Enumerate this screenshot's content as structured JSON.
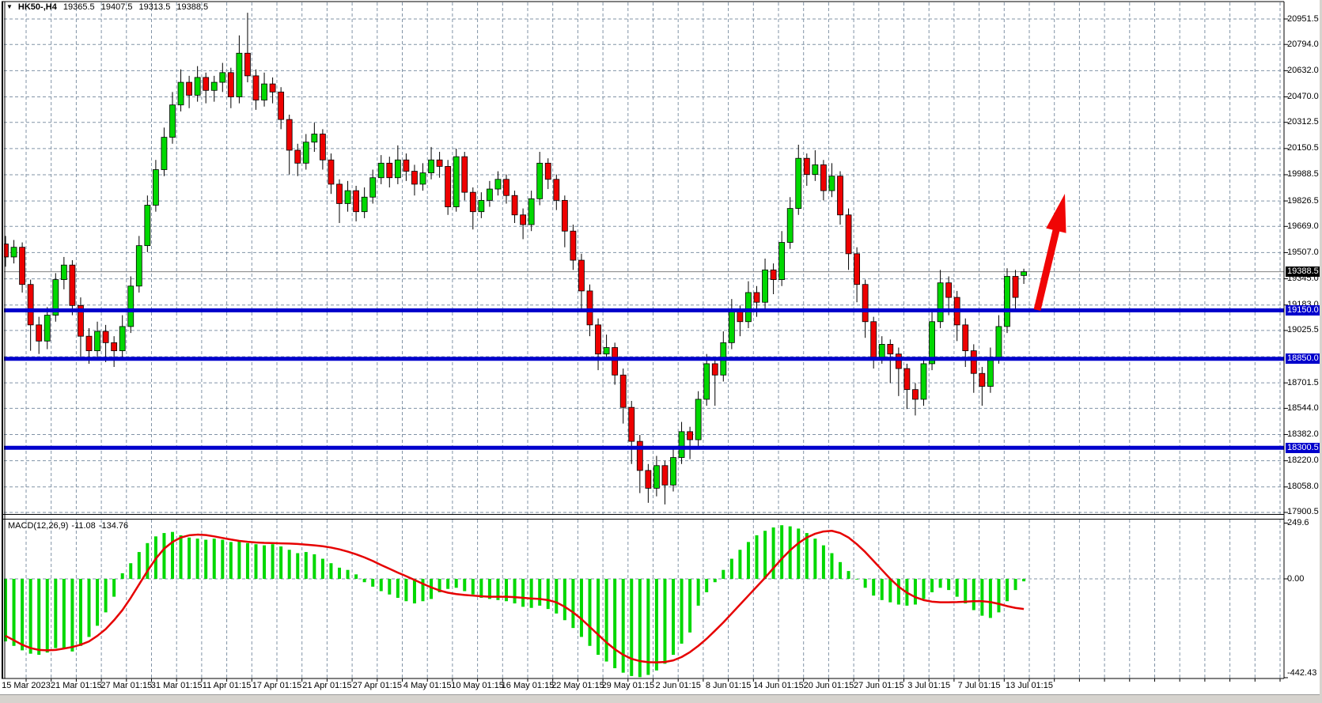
{
  "header": {
    "symbol": "HK50-,H4",
    "open": "19365.5",
    "high": "19407.5",
    "low": "19313.5",
    "close": "19388.5"
  },
  "macd_panel": {
    "name": "MACD(12,26,9)",
    "macd_value": "-11.08",
    "signal_value": "-134.76",
    "axis_labels": [
      "249.6",
      "0.00",
      "-442.43"
    ],
    "axis_values": [
      249.6,
      0,
      -442.43
    ]
  },
  "price_axis": {
    "tick_labels": [
      "20951.5",
      "20794.0",
      "20632.0",
      "20470.0",
      "20312.5",
      "20150.5",
      "19988.5",
      "19826.5",
      "19669.0",
      "19507.0",
      "19345.0",
      "19183.0",
      "19025.5",
      "18701.5",
      "18544.0",
      "18382.0",
      "18220.0",
      "18058.0",
      "17900.5"
    ],
    "tick_values": [
      20951.5,
      20794.0,
      20632.0,
      20470.0,
      20312.5,
      20150.5,
      19988.5,
      19826.5,
      19669.0,
      19507.0,
      19345.0,
      19183.0,
      19025.5,
      18701.5,
      18544.0,
      18382.0,
      18220.0,
      18058.0,
      17900.5
    ],
    "grid_values": [
      20951.5,
      20794.0,
      20632.0,
      20470.0,
      20312.5,
      20150.5,
      19988.5,
      19826.5,
      19669.0,
      19507.0,
      19345.0,
      19183.0,
      19025.5,
      18863.5,
      18701.5,
      18544.0,
      18382.0,
      18220.0,
      18058.0,
      17900.5
    ],
    "current_price": 19388.5,
    "current_price_label": "19388.5"
  },
  "time_axis": {
    "labels": [
      "15 Mar 2023",
      "21 Mar 01:15",
      "27 Mar 01:15",
      "31 Mar 01:15",
      "11 Apr 01:15",
      "17 Apr 01:15",
      "21 Apr 01:15",
      "27 Apr 01:15",
      "4 May 01:15",
      "10 May 01:15",
      "16 May 01:15",
      "22 May 01:15",
      "29 May 01:15",
      "2 Jun 01:15",
      "8 Jun 01:15",
      "14 Jun 01:15",
      "20 Jun 01:15",
      "27 Jun 01:15",
      "3 Jul 01:15",
      "7 Jul 01:15",
      "13 Jul 01:15"
    ]
  },
  "colors": {
    "bull": "#00d800",
    "bear": "#ee0000",
    "wick": "#000000",
    "grid": "#8193a6",
    "support_line": "#0000cc",
    "current_line": "#808080",
    "macd_hist": "#00d800",
    "macd_signal": "#e60000",
    "black_label_bg": "#000000",
    "blue_label_bg": "#0000cc",
    "arrow": "#f00505",
    "border": "#000000"
  },
  "chart_data": {
    "type": "candlestick_with_macd",
    "symbol": "HK50-",
    "timeframe": "H4",
    "price_axis_top": 20951.5,
    "support_lines": [
      {
        "price": 19150.0,
        "label": "19150.0"
      },
      {
        "price": 18850.0,
        "label": "18850.0"
      },
      {
        "price": 18300.5,
        "label": "18300.5"
      }
    ],
    "annotation_arrow": {
      "from": [
        1311,
        392
      ],
      "to": [
        1346,
        245
      ]
    },
    "candles": [
      [
        19560,
        19610,
        19420,
        19480
      ],
      [
        19480,
        19585,
        19440,
        19540
      ],
      [
        19540,
        19570,
        19260,
        19310
      ],
      [
        19310,
        19340,
        18900,
        19060
      ],
      [
        19060,
        19110,
        18880,
        18960
      ],
      [
        18960,
        19170,
        18910,
        19120
      ],
      [
        19120,
        19380,
        19080,
        19340
      ],
      [
        19340,
        19480,
        19280,
        19430
      ],
      [
        19430,
        19460,
        19120,
        19180
      ],
      [
        19180,
        19230,
        18850,
        18990
      ],
      [
        18990,
        19040,
        18820,
        18900
      ],
      [
        18900,
        19080,
        18860,
        19020
      ],
      [
        19020,
        19060,
        18830,
        18950
      ],
      [
        18950,
        18990,
        18800,
        18900
      ],
      [
        18900,
        19120,
        18840,
        19050
      ],
      [
        19050,
        19360,
        19010,
        19300
      ],
      [
        19300,
        19610,
        19260,
        19550
      ],
      [
        19550,
        19860,
        19510,
        19800
      ],
      [
        19800,
        20080,
        19760,
        20020
      ],
      [
        20020,
        20280,
        19980,
        20220
      ],
      [
        20220,
        20500,
        20180,
        20420
      ],
      [
        20420,
        20640,
        20380,
        20560
      ],
      [
        20560,
        20600,
        20400,
        20480
      ],
      [
        20480,
        20660,
        20440,
        20590
      ],
      [
        20590,
        20620,
        20430,
        20510
      ],
      [
        20510,
        20600,
        20440,
        20560
      ],
      [
        20560,
        20680,
        20500,
        20620
      ],
      [
        20620,
        20650,
        20400,
        20470
      ],
      [
        20470,
        20850,
        20430,
        20740
      ],
      [
        20740,
        20990,
        20560,
        20600
      ],
      [
        20600,
        20640,
        20390,
        20450
      ],
      [
        20450,
        20620,
        20410,
        20550
      ],
      [
        20550,
        20590,
        20430,
        20500
      ],
      [
        20500,
        20530,
        20270,
        20330
      ],
      [
        20330,
        20360,
        19990,
        20140
      ],
      [
        20140,
        20180,
        19980,
        20060
      ],
      [
        20060,
        20240,
        20020,
        20190
      ],
      [
        20190,
        20310,
        20130,
        20240
      ],
      [
        20240,
        20270,
        20020,
        20080
      ],
      [
        20080,
        20120,
        19870,
        19930
      ],
      [
        19930,
        19960,
        19690,
        19810
      ],
      [
        19810,
        19950,
        19760,
        19890
      ],
      [
        19890,
        19920,
        19700,
        19760
      ],
      [
        19760,
        19910,
        19720,
        19850
      ],
      [
        19850,
        20020,
        19810,
        19970
      ],
      [
        19970,
        20110,
        19930,
        20060
      ],
      [
        20060,
        20100,
        19910,
        19970
      ],
      [
        19970,
        20170,
        19930,
        20080
      ],
      [
        20080,
        20120,
        19950,
        20010
      ],
      [
        20010,
        20050,
        19860,
        19930
      ],
      [
        19930,
        20060,
        19890,
        20000
      ],
      [
        20000,
        20160,
        19960,
        20080
      ],
      [
        20080,
        20130,
        19970,
        20040
      ],
      [
        20040,
        20080,
        19740,
        19790
      ],
      [
        19790,
        20150,
        19760,
        20100
      ],
      [
        20100,
        20130,
        19830,
        19880
      ],
      [
        19880,
        19910,
        19650,
        19760
      ],
      [
        19760,
        19880,
        19720,
        19830
      ],
      [
        19830,
        19950,
        19790,
        19900
      ],
      [
        19900,
        20010,
        19860,
        19960
      ],
      [
        19960,
        19990,
        19810,
        19860
      ],
      [
        19860,
        19890,
        19690,
        19740
      ],
      [
        19740,
        19780,
        19590,
        19680
      ],
      [
        19680,
        19890,
        19640,
        19840
      ],
      [
        19840,
        20130,
        19800,
        20060
      ],
      [
        20060,
        20090,
        19900,
        19960
      ],
      [
        19960,
        19990,
        19770,
        19830
      ],
      [
        19830,
        19860,
        19540,
        19640
      ],
      [
        19640,
        19680,
        19400,
        19460
      ],
      [
        19460,
        19500,
        19150,
        19270
      ],
      [
        19270,
        19310,
        18990,
        19060
      ],
      [
        19060,
        19100,
        18780,
        18880
      ],
      [
        18880,
        19000,
        18840,
        18920
      ],
      [
        18920,
        18950,
        18690,
        18750
      ],
      [
        18750,
        18790,
        18450,
        18550
      ],
      [
        18550,
        18590,
        18200,
        18340
      ],
      [
        18340,
        18380,
        18020,
        18160
      ],
      [
        18160,
        18200,
        17960,
        18050
      ],
      [
        18050,
        18250,
        18000,
        18190
      ],
      [
        18190,
        18220,
        17950,
        18070
      ],
      [
        18070,
        18290,
        18030,
        18240
      ],
      [
        18240,
        18460,
        18200,
        18400
      ],
      [
        18400,
        18430,
        18230,
        18350
      ],
      [
        18350,
        18650,
        18310,
        18600
      ],
      [
        18600,
        18880,
        18560,
        18820
      ],
      [
        18820,
        18850,
        18560,
        18750
      ],
      [
        18750,
        19020,
        18710,
        18950
      ],
      [
        18950,
        19220,
        18910,
        19140
      ],
      [
        19140,
        19180,
        18990,
        19080
      ],
      [
        19080,
        19330,
        19040,
        19260
      ],
      [
        19260,
        19300,
        19110,
        19200
      ],
      [
        19200,
        19470,
        19160,
        19400
      ],
      [
        19400,
        19440,
        19250,
        19340
      ],
      [
        19340,
        19640,
        19300,
        19570
      ],
      [
        19570,
        19850,
        19530,
        19780
      ],
      [
        19780,
        20174,
        19740,
        20090
      ],
      [
        20090,
        20120,
        19920,
        19990
      ],
      [
        19990,
        20140,
        19950,
        20050
      ],
      [
        20050,
        20080,
        19830,
        19890
      ],
      [
        19890,
        20060,
        19850,
        19980
      ],
      [
        19980,
        20010,
        19680,
        19740
      ],
      [
        19740,
        19780,
        19400,
        19500
      ],
      [
        19500,
        19540,
        19200,
        19310
      ],
      [
        19310,
        19340,
        18980,
        19080
      ],
      [
        19080,
        19110,
        18790,
        18860
      ],
      [
        18860,
        18990,
        18820,
        18940
      ],
      [
        18940,
        18970,
        18700,
        18880
      ],
      [
        18880,
        18920,
        18620,
        18790
      ],
      [
        18790,
        18820,
        18540,
        18660
      ],
      [
        18660,
        18700,
        18500,
        18600
      ],
      [
        18600,
        18860,
        18560,
        18820
      ],
      [
        18820,
        19160,
        18780,
        19080
      ],
      [
        19080,
        19400,
        19040,
        19320
      ],
      [
        19320,
        19360,
        19120,
        19230
      ],
      [
        19230,
        19270,
        18960,
        19060
      ],
      [
        19060,
        19100,
        18800,
        18900
      ],
      [
        18900,
        18940,
        18640,
        18760
      ],
      [
        18760,
        18800,
        18560,
        18680
      ],
      [
        18680,
        18920,
        18640,
        18860
      ],
      [
        18860,
        19120,
        18820,
        19050
      ],
      [
        19050,
        19410,
        19010,
        19360
      ],
      [
        19360,
        19400,
        19150,
        19230
      ],
      [
        19365.5,
        19407.5,
        19313.5,
        19388.5
      ]
    ],
    "macd": {
      "params": "12,26,9",
      "histogram": [
        -280,
        -300,
        -320,
        -335,
        -340,
        -330,
        -310,
        -315,
        -325,
        -300,
        -260,
        -210,
        -150,
        -80,
        25,
        70,
        120,
        160,
        190,
        205,
        210,
        195,
        185,
        180,
        175,
        180,
        175,
        165,
        170,
        160,
        155,
        150,
        155,
        145,
        130,
        115,
        120,
        110,
        90,
        70,
        50,
        40,
        20,
        -15,
        -35,
        -55,
        -70,
        -85,
        -100,
        -110,
        -100,
        -90,
        -60,
        -45,
        -40,
        -55,
        -70,
        -85,
        -90,
        -95,
        -100,
        -110,
        -125,
        -130,
        -120,
        -135,
        -155,
        -185,
        -220,
        -260,
        -300,
        -340,
        -370,
        -400,
        -420,
        -435,
        -440,
        -430,
        -410,
        -380,
        -340,
        -290,
        -240,
        -120,
        -60,
        -15,
        40,
        90,
        130,
        165,
        195,
        215,
        230,
        240,
        235,
        225,
        205,
        180,
        150,
        115,
        75,
        35,
        0,
        -40,
        -75,
        -95,
        -105,
        -115,
        -120,
        -115,
        -90,
        -60,
        -40,
        -50,
        -80,
        -110,
        -140,
        -165,
        -175,
        -150,
        -100,
        -50,
        -11.08
      ],
      "signal": [
        -255,
        -275,
        -295,
        -310,
        -318,
        -320,
        -318,
        -312,
        -305,
        -295,
        -280,
        -255,
        -225,
        -185,
        -140,
        -85,
        -25,
        35,
        90,
        135,
        165,
        185,
        195,
        198,
        196,
        190,
        183,
        176,
        170,
        166,
        163,
        161,
        160,
        159,
        158,
        156,
        153,
        150,
        146,
        140,
        132,
        122,
        110,
        96,
        80,
        62,
        45,
        28,
        12,
        -5,
        -22,
        -38,
        -52,
        -62,
        -68,
        -72,
        -75,
        -78,
        -80,
        -80,
        -80,
        -82,
        -85,
        -88,
        -90,
        -95,
        -105,
        -125,
        -150,
        -180,
        -215,
        -250,
        -285,
        -315,
        -340,
        -358,
        -368,
        -373,
        -374,
        -372,
        -365,
        -350,
        -328,
        -300,
        -268,
        -232,
        -195,
        -155,
        -115,
        -75,
        -35,
        5,
        48,
        90,
        128,
        160,
        185,
        202,
        212,
        215,
        205,
        185,
        155,
        120,
        80,
        40,
        0,
        -35,
        -62,
        -82,
        -95,
        -102,
        -105,
        -105,
        -104,
        -102,
        -100,
        -100,
        -104,
        -112,
        -122,
        -130,
        -134.76
      ]
    }
  }
}
